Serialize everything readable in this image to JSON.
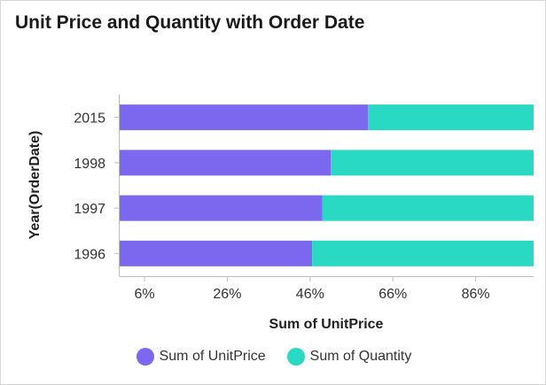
{
  "widget": {
    "title": "Unit Price and Quantity with Order Date"
  },
  "chart_data": {
    "type": "bar",
    "orientation": "horizontal",
    "stacked": "percent",
    "title": "Unit Price and Quantity with Order Date",
    "xlabel": "Sum of UnitPrice",
    "ylabel": "Year(OrderDate)",
    "xlim": [
      0,
      100
    ],
    "x_ticks": [
      6,
      26,
      46,
      66,
      86
    ],
    "x_tick_labels": [
      "6%",
      "26%",
      "46%",
      "66%",
      "86%"
    ],
    "categories": [
      "2015",
      "1998",
      "1997",
      "1996"
    ],
    "series": [
      {
        "name": "Sum of UnitPrice",
        "color": "#7b68ee",
        "values": [
          60,
          51,
          49,
          46.5
        ]
      },
      {
        "name": "Sum of Quantity",
        "color": "#2ad9c4",
        "values": [
          40,
          49,
          51,
          53.5
        ]
      }
    ],
    "legend_position": "bottom"
  }
}
